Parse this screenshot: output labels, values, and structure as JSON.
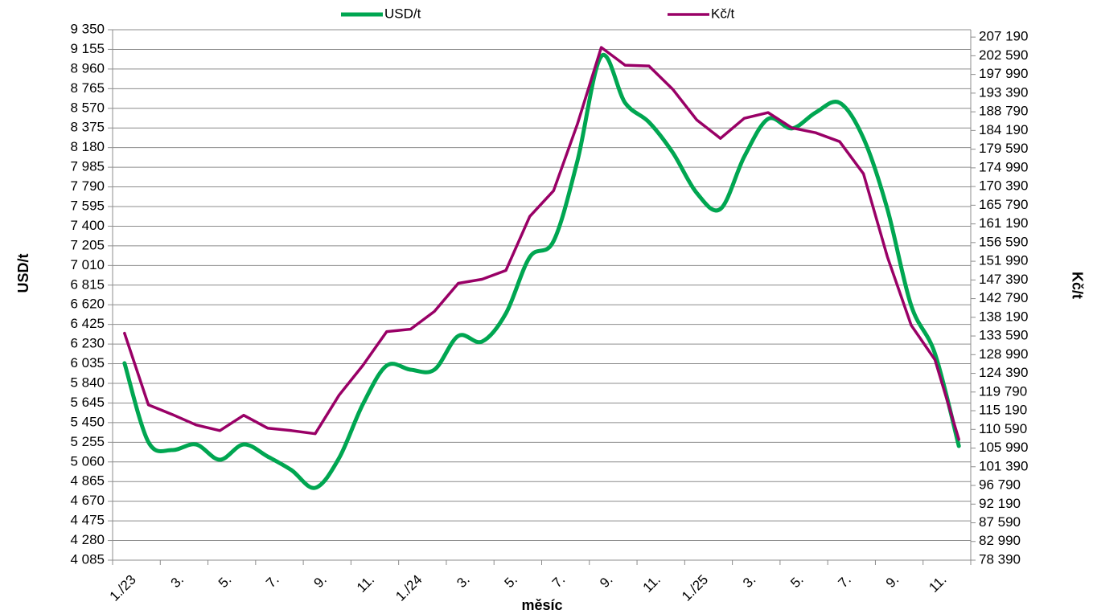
{
  "chart_data": {
    "type": "line",
    "x_label": "měsíc",
    "y_label": "USD/t",
    "y2_label": "Kč/t",
    "categories": [
      "1./23",
      null,
      "3.",
      null,
      "5.",
      null,
      "7.",
      null,
      "9.",
      null,
      "11.",
      null,
      "1./24",
      null,
      "3.",
      null,
      "5.",
      null,
      "7.",
      null,
      "9.",
      null,
      "11.",
      null,
      "1./25",
      null,
      "3.",
      null,
      "5.",
      null,
      "7.",
      null,
      "9.",
      null,
      "11.",
      null
    ],
    "series": [
      {
        "name": "USD/t",
        "color": "#00a651",
        "smooth": true,
        "values": [
          6040,
          5258,
          5178,
          5234,
          5082,
          5234,
          5114,
          4979,
          4803,
          5098,
          5633,
          6016,
          5976,
          5976,
          6311,
          6255,
          6534,
          7093,
          7252,
          8050,
          9087,
          8625,
          8433,
          8130,
          7731,
          7571,
          8090,
          8465,
          8370,
          8529,
          8625,
          8273,
          7571,
          6614,
          6135,
          5218
        ]
      },
      {
        "name": "Kč/t",
        "color": "#990066",
        "axis": "y2",
        "smooth": false,
        "values": [
          134280,
          116640,
          114260,
          111690,
          110300,
          114070,
          110900,
          110300,
          109510,
          119020,
          126350,
          134680,
          135270,
          139630,
          146570,
          147560,
          149740,
          163020,
          169360,
          185810,
          204640,
          200280,
          200080,
          194340,
          186810,
          182250,
          187200,
          188590,
          184820,
          183630,
          181450,
          173530,
          153110,
          136260,
          127740,
          108120
        ]
      }
    ],
    "ylim": [
      4085,
      9350
    ],
    "yticks": [
      {
        "value": 4085,
        "label": "4 085"
      },
      {
        "value": 4280,
        "label": "4 280"
      },
      {
        "value": 4475,
        "label": "4 475"
      },
      {
        "value": 4670,
        "label": "4 670"
      },
      {
        "value": 4865,
        "label": "4 865"
      },
      {
        "value": 5060,
        "label": "5 060"
      },
      {
        "value": 5255,
        "label": "5 255"
      },
      {
        "value": 5450,
        "label": "5 450"
      },
      {
        "value": 5645,
        "label": "5 645"
      },
      {
        "value": 5840,
        "label": "5 840"
      },
      {
        "value": 6035,
        "label": "6 035"
      },
      {
        "value": 6230,
        "label": "6 230"
      },
      {
        "value": 6425,
        "label": "6 425"
      },
      {
        "value": 6620,
        "label": "6 620"
      },
      {
        "value": 6815,
        "label": "6 815"
      },
      {
        "value": 7010,
        "label": "7 010"
      },
      {
        "value": 7205,
        "label": "7 205"
      },
      {
        "value": 7400,
        "label": "7 400"
      },
      {
        "value": 7595,
        "label": "7 595"
      },
      {
        "value": 7790,
        "label": "7 790"
      },
      {
        "value": 7985,
        "label": "7 985"
      },
      {
        "value": 8180,
        "label": "8 180"
      },
      {
        "value": 8375,
        "label": "8 375"
      },
      {
        "value": 8570,
        "label": "8 570"
      },
      {
        "value": 8765,
        "label": "8 765"
      },
      {
        "value": 8960,
        "label": "8 960"
      },
      {
        "value": 9155,
        "label": "9 155"
      },
      {
        "value": 9350,
        "label": "9 350"
      }
    ],
    "y2lim": [
      78390,
      209000
    ],
    "y2ticks": [
      {
        "value": 78390,
        "label": "78 390"
      },
      {
        "value": 82990,
        "label": "82 990"
      },
      {
        "value": 87590,
        "label": "87 590"
      },
      {
        "value": 92190,
        "label": "92 190"
      },
      {
        "value": 96790,
        "label": "96 790"
      },
      {
        "value": 101390,
        "label": "101 390"
      },
      {
        "value": 105990,
        "label": "105 990"
      },
      {
        "value": 110590,
        "label": "110 590"
      },
      {
        "value": 115190,
        "label": "115 190"
      },
      {
        "value": 119790,
        "label": "119 790"
      },
      {
        "value": 124390,
        "label": "124 390"
      },
      {
        "value": 128990,
        "label": "128 990"
      },
      {
        "value": 133590,
        "label": "133 590"
      },
      {
        "value": 138190,
        "label": "138 190"
      },
      {
        "value": 142790,
        "label": "142 790"
      },
      {
        "value": 147390,
        "label": "147 390"
      },
      {
        "value": 151990,
        "label": "151 990"
      },
      {
        "value": 156590,
        "label": "156 590"
      },
      {
        "value": 161190,
        "label": "161 190"
      },
      {
        "value": 165790,
        "label": "165 790"
      },
      {
        "value": 170390,
        "label": "170 390"
      },
      {
        "value": 174990,
        "label": "174 990"
      },
      {
        "value": 179590,
        "label": "179 590"
      },
      {
        "value": 184190,
        "label": "184 190"
      },
      {
        "value": 188790,
        "label": "188 790"
      },
      {
        "value": 193390,
        "label": "193 390"
      },
      {
        "value": 197990,
        "label": "197 990"
      },
      {
        "value": 202590,
        "label": "202 590"
      },
      {
        "value": 207190,
        "label": "207 190"
      }
    ],
    "grid": true,
    "legend": "top"
  }
}
